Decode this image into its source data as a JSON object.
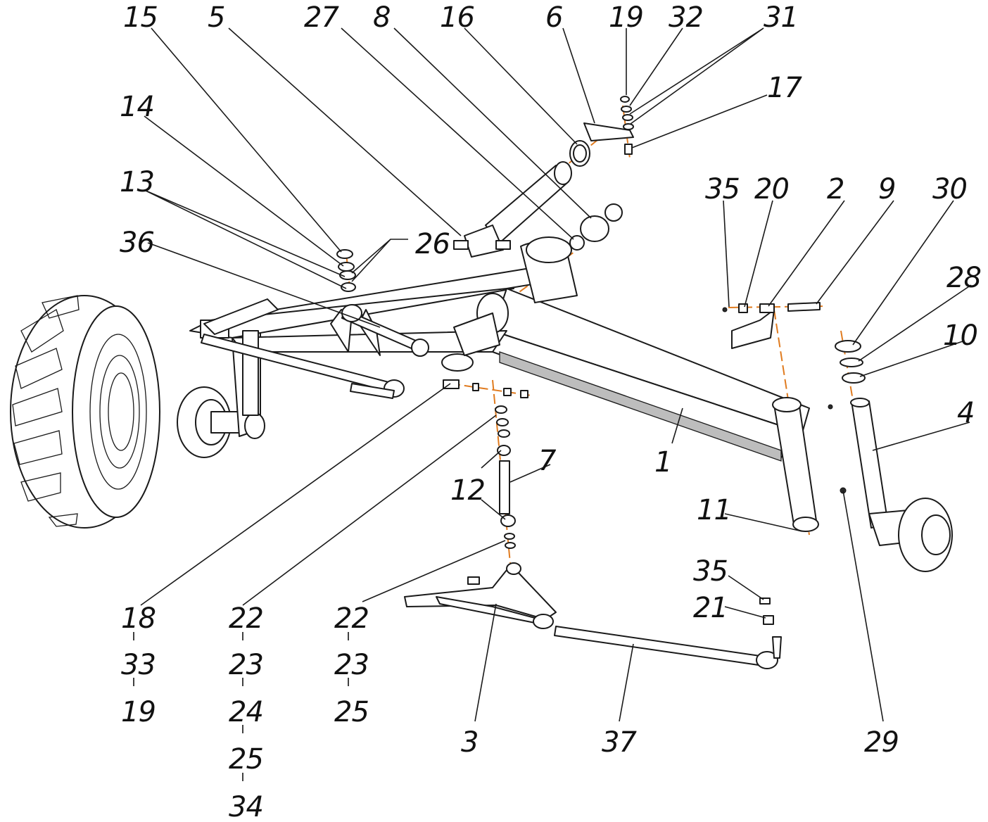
{
  "callouts": {
    "c15": "15",
    "c5": "5",
    "c27": "27",
    "c8": "8",
    "c16": "16",
    "c6": "6",
    "c19": "19",
    "c32": "32",
    "c31": "31",
    "c17": "17",
    "c14": "14",
    "c13": "13",
    "c26": "26",
    "c36": "36",
    "c35a": "35",
    "c20": "20",
    "c2": "2",
    "c9": "9",
    "c30": "30",
    "c28": "28",
    "c10": "10",
    "c4": "4",
    "c1": "1",
    "c7": "7",
    "c12": "12",
    "c11": "11",
    "c35b": "35",
    "c21": "21",
    "c3": "3",
    "c37": "37",
    "c29": "29"
  },
  "stacks": {
    "s1": [
      "18",
      "33",
      "19"
    ],
    "s2": [
      "22",
      "23",
      "24",
      "25",
      "34"
    ],
    "s3": [
      "22",
      "23",
      "25"
    ]
  }
}
